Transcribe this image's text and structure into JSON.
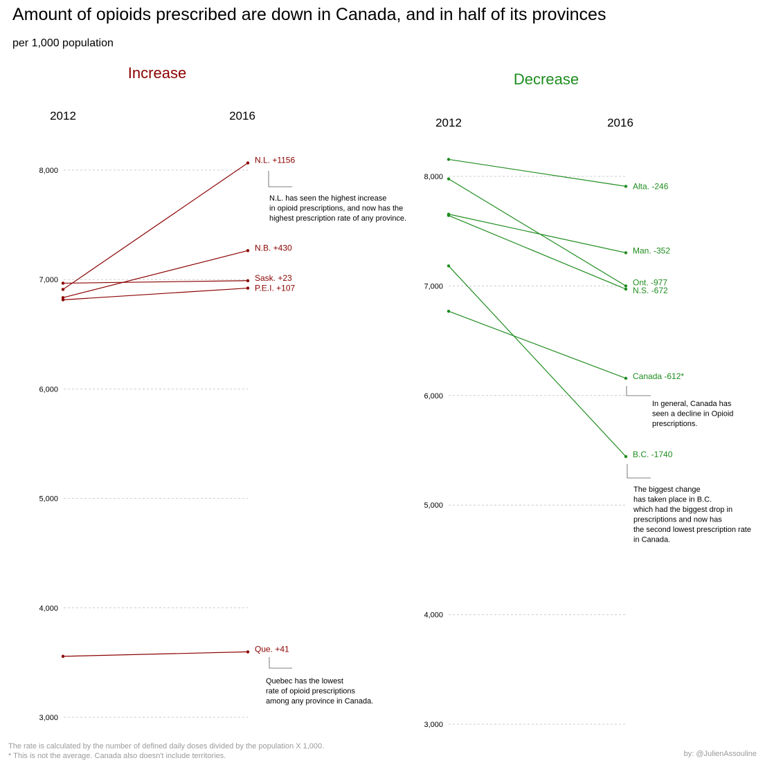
{
  "title": "Amount of opioids prescribed are down in Canada, and in half of its provinces",
  "subtitle": "per 1,000 population",
  "colors": {
    "increase": "#8b0000",
    "decrease": "#1e8c1e",
    "grid": "#cccccc",
    "annotation": "#555555",
    "footnote": "#9a9a9a"
  },
  "footnote_lines": [
    "The rate is calculated by the number of  defined daily doses divided by the population X 1,000.",
    "* This is not the average. Canada also doesn't include territories."
  ],
  "credit": "by: @JulienAssouline",
  "chart_data": [
    {
      "type": "line",
      "panel": "increase",
      "title": "Increase",
      "x": [
        "2012",
        "2016"
      ],
      "ylim": [
        3000,
        8000
      ],
      "yticks": [
        3000,
        4000,
        5000,
        6000,
        7000,
        8000
      ],
      "ytick_labels": [
        "3,000",
        "4,000",
        "5,000",
        "6,000",
        "7,000",
        "8,000"
      ],
      "grid": true,
      "series": [
        {
          "name": "N.L.",
          "label": "N.L. +1156",
          "values": [
            6910,
            8066
          ]
        },
        {
          "name": "N.B.",
          "label": "N.B. +430",
          "values": [
            6835,
            7265
          ]
        },
        {
          "name": "Sask.",
          "label": "Sask. +23",
          "values": [
            6967,
            6990
          ]
        },
        {
          "name": "P.E.I.",
          "label": "P.E.I. +107",
          "values": [
            6815,
            6922
          ]
        },
        {
          "name": "Que.",
          "label": "Que. +41",
          "values": [
            3557,
            3598
          ]
        }
      ],
      "annotations": [
        {
          "target": "N.L.",
          "lines": [
            "N.L. has seen the highest increase",
            "in opioid prescriptions, and now has the",
            "highest prescription rate of any province."
          ]
        },
        {
          "target": "Que.",
          "lines": [
            "Quebec has the lowest",
            "rate of opioid prescriptions",
            "among any province in Canada."
          ]
        }
      ]
    },
    {
      "type": "line",
      "panel": "decrease",
      "title": "Decrease",
      "x": [
        "2012",
        "2016"
      ],
      "ylim": [
        3000,
        8000
      ],
      "yticks": [
        3000,
        4000,
        5000,
        6000,
        7000,
        8000
      ],
      "ytick_labels": [
        "3,000",
        "4,000",
        "5,000",
        "6,000",
        "7,000",
        "8,000"
      ],
      "grid": true,
      "series": [
        {
          "name": "Alta.",
          "label": "Alta. -246",
          "values": [
            8155,
            7909
          ]
        },
        {
          "name": "Man.",
          "label": "Man. -352",
          "values": [
            7655,
            7303
          ]
        },
        {
          "name": "Ont.",
          "label": "Ont. -977",
          "values": [
            7977,
            7000
          ]
        },
        {
          "name": "N.S.",
          "label": "N.S. -672",
          "values": [
            7643,
            6971
          ]
        },
        {
          "name": "Canada",
          "label": "Canada -612*",
          "values": [
            6769,
            6157
          ]
        },
        {
          "name": "B.C.",
          "label": "B.C. -1740",
          "values": [
            7183,
            5443
          ]
        }
      ],
      "annotations": [
        {
          "target": "Canada",
          "lines": [
            "In general, Canada has",
            "seen a decline in Opioid",
            "prescriptions."
          ]
        },
        {
          "target": "B.C.",
          "lines": [
            "The biggest change",
            "has taken place in B.C.",
            "which had the biggest drop in",
            "prescriptions and now has",
            "the second lowest prescription rate",
            "in Canada."
          ]
        }
      ]
    }
  ]
}
